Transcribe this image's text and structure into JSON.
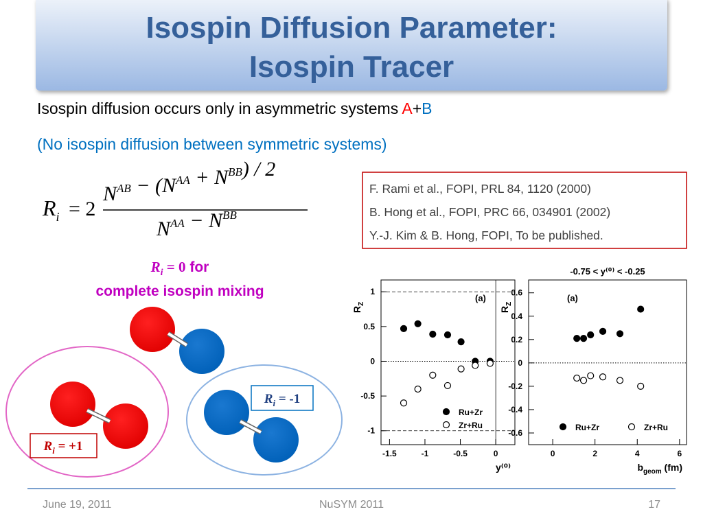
{
  "title": [
    "Isospin Diffusion Parameter:",
    "Isospin Tracer"
  ],
  "body": {
    "line1": "Isospin diffusion occurs only in asymmetric systems",
    "a": "A",
    "plus": "+",
    "b": "B",
    "line2": "(No isospin diffusion between symmetric systems)"
  },
  "formula": {
    "lhs": "R",
    "lhs_sub": "i",
    "eq": "= 2",
    "num": [
      {
        "text": "N",
        "sup": "AB"
      },
      {
        "text": " − (N",
        "sup": "AA"
      },
      {
        "text": " + N",
        "sup": "BB"
      },
      {
        "text": ") / 2"
      }
    ],
    "den": [
      {
        "text": "N",
        "sup": "AA"
      },
      {
        "text": " − N",
        "sup": "BB"
      }
    ]
  },
  "references": [
    "F. Rami et al., FOPI, PRL 84, 1120 (2000)",
    "B. Hong et al., FOPI, PRC 66, 034901 (2002)",
    "Y.-J. Kim & B. Hong, FOPI, To be published."
  ],
  "mixing": {
    "r": "R",
    "sub": "i",
    "eq": " = 0",
    "for": " for",
    "line2": "complete isospin mixing"
  },
  "label_plus": {
    "r": "R",
    "sub": "i",
    "eq": " = +1"
  },
  "label_minus": {
    "r": "R",
    "sub": "i",
    "eq": " = -1"
  },
  "footer": {
    "date": "June 19, 2011",
    "event": "NuSYM 2011",
    "page": "17"
  },
  "chart_data": [
    {
      "type": "scatter",
      "annotation": "(a)",
      "xlabel": "y⁽⁰⁾",
      "ylabel": "R",
      "ylabel_sub": "Z",
      "xlim": [
        -1.62,
        0.27
      ],
      "ylim": [
        -1.2,
        1.17
      ],
      "xticks": [
        -1.5,
        -1,
        -0.5,
        0
      ],
      "yticks": [
        -1,
        -0.5,
        0,
        0.5,
        1
      ],
      "series": [
        {
          "name": "Ru+Zr",
          "color": "#000000",
          "marker": "filled",
          "x": [
            -1.3,
            -1.1,
            -0.89,
            -0.68,
            -0.49,
            -0.29,
            -0.08
          ],
          "values": [
            0.47,
            0.54,
            0.39,
            0.38,
            0.28,
            0.0,
            0.0
          ]
        },
        {
          "name": "Zr+Ru",
          "color": "#000000",
          "marker": "open",
          "x": [
            -1.3,
            -1.1,
            -0.89,
            -0.68,
            -0.49,
            -0.29,
            -0.08
          ],
          "values": [
            -0.6,
            -0.4,
            -0.2,
            -0.35,
            -0.11,
            -0.06,
            -0.03
          ]
        }
      ]
    },
    {
      "type": "scatter",
      "title": "-0.75 < y⁽⁰⁾ < -0.25",
      "annotation": "(a)",
      "xlabel": "b",
      "xlabel_sub": "geom",
      "xlabel_unit": " (fm)",
      "ylabel": "R",
      "ylabel_sub": "Z",
      "xlim": [
        -1.14,
        6.33
      ],
      "ylim": [
        -0.7,
        0.71
      ],
      "xticks": [
        0,
        2,
        4,
        6
      ],
      "yticks": [
        -0.6,
        -0.4,
        -0.2,
        0,
        0.2,
        0.4,
        0.6
      ],
      "series": [
        {
          "name": "Ru+Zr",
          "color": "#000000",
          "marker": "filled",
          "x": [
            1.14,
            1.46,
            1.79,
            2.37,
            3.18,
            4.16
          ],
          "values": [
            0.21,
            0.21,
            0.24,
            0.27,
            0.25,
            0.46
          ]
        },
        {
          "name": "Zr+Ru",
          "color": "#000000",
          "marker": "open",
          "x": [
            1.14,
            1.46,
            1.79,
            2.37,
            3.18,
            4.16
          ],
          "values": [
            -0.13,
            -0.15,
            -0.11,
            -0.12,
            -0.15,
            -0.2
          ]
        }
      ]
    }
  ]
}
